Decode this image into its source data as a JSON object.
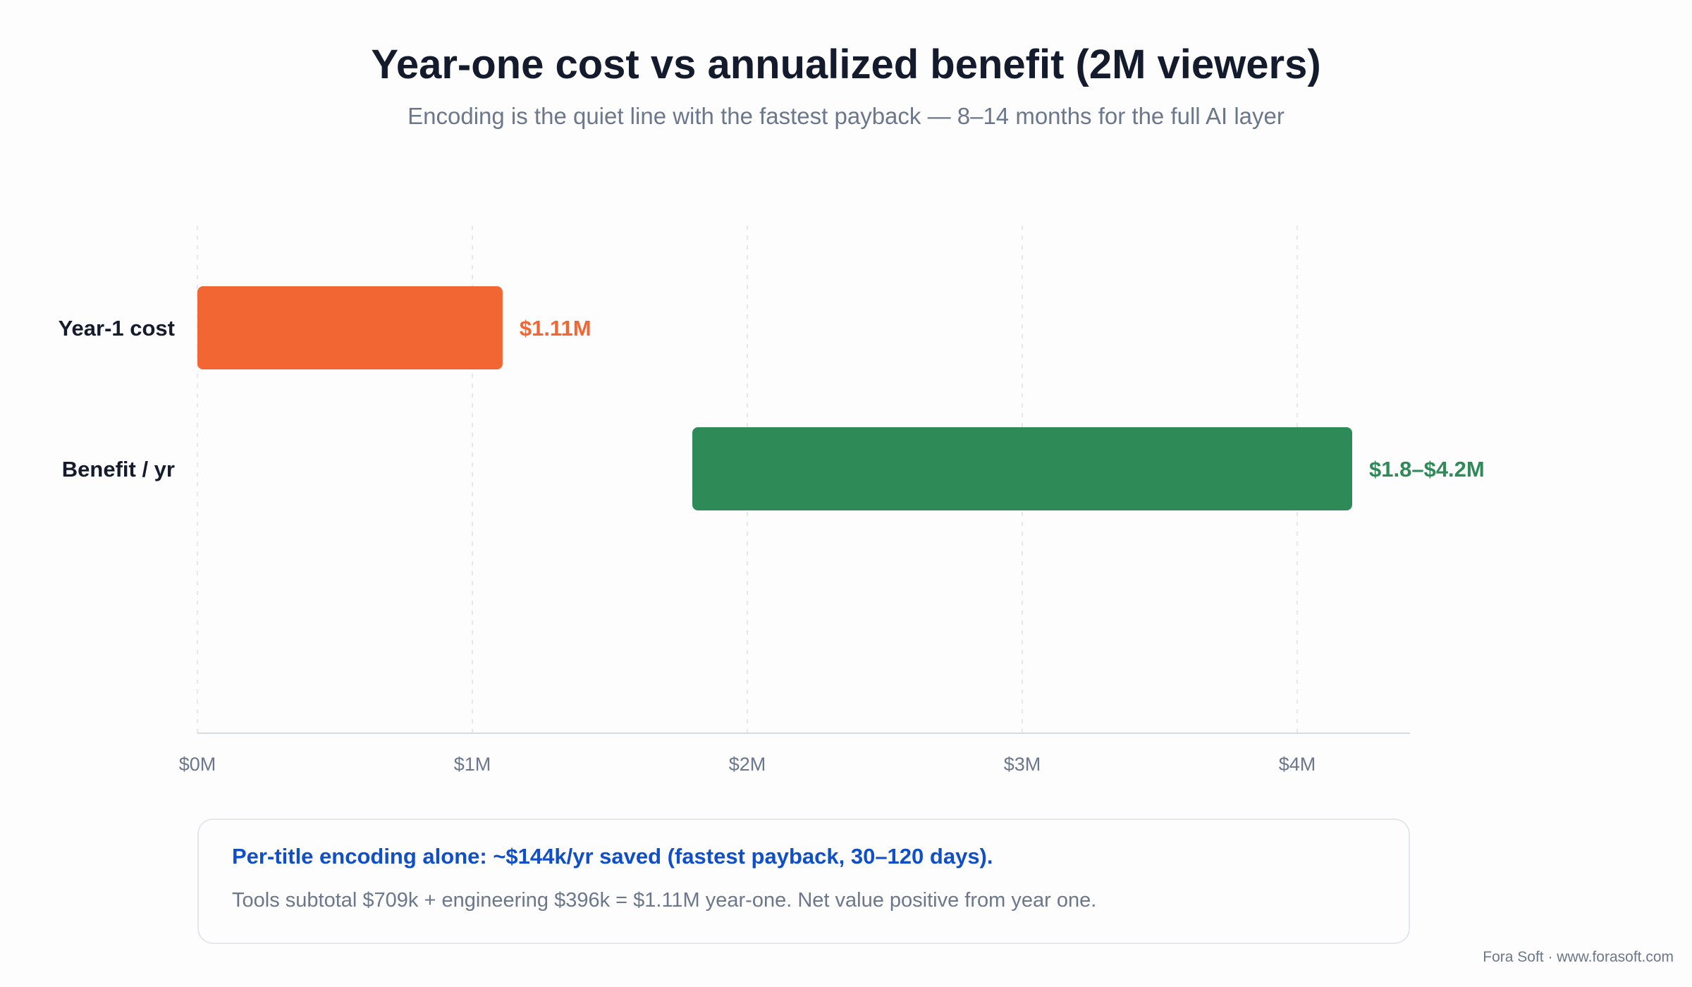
{
  "header": {
    "title": "Year-one cost vs annualized benefit (2M viewers)",
    "subtitle": "Encoding is the quiet line with the fastest payback — 8–14 months for the full AI layer"
  },
  "chart_data": {
    "type": "bar",
    "orientation": "horizontal",
    "title": "Year-one cost vs annualized benefit (2M viewers)",
    "subtitle": "Encoding is the quiet line with the fastest payback — 8–14 months for the full AI layer",
    "xlabel": "",
    "ylabel": "",
    "xlim": [
      0,
      4.4
    ],
    "x_unit": "$M",
    "x_ticks": [
      0,
      1,
      2,
      3,
      4
    ],
    "x_tick_labels": [
      "$0M",
      "$1M",
      "$2M",
      "$3M",
      "$4M"
    ],
    "grid": "vertical dashed",
    "categories": [
      "Year-1 cost",
      "Benefit / yr"
    ],
    "bars": [
      {
        "category": "Year-1 cost",
        "start": 0,
        "end": 1.11,
        "label": "$1.11M",
        "color": "#f26633"
      },
      {
        "category": "Benefit / yr",
        "start": 1.8,
        "end": 4.2,
        "label": "$1.8–$4.2M",
        "color": "#2e8b57"
      }
    ]
  },
  "note": {
    "highlight": "Per-title encoding alone: ~$144k/yr saved (fastest payback, 30–120 days).",
    "body": "Tools subtotal $709k + engineering $396k = $1.11M year-one. Net value positive from year one."
  },
  "footer": {
    "credit": "Fora Soft · www.forasoft.com"
  }
}
